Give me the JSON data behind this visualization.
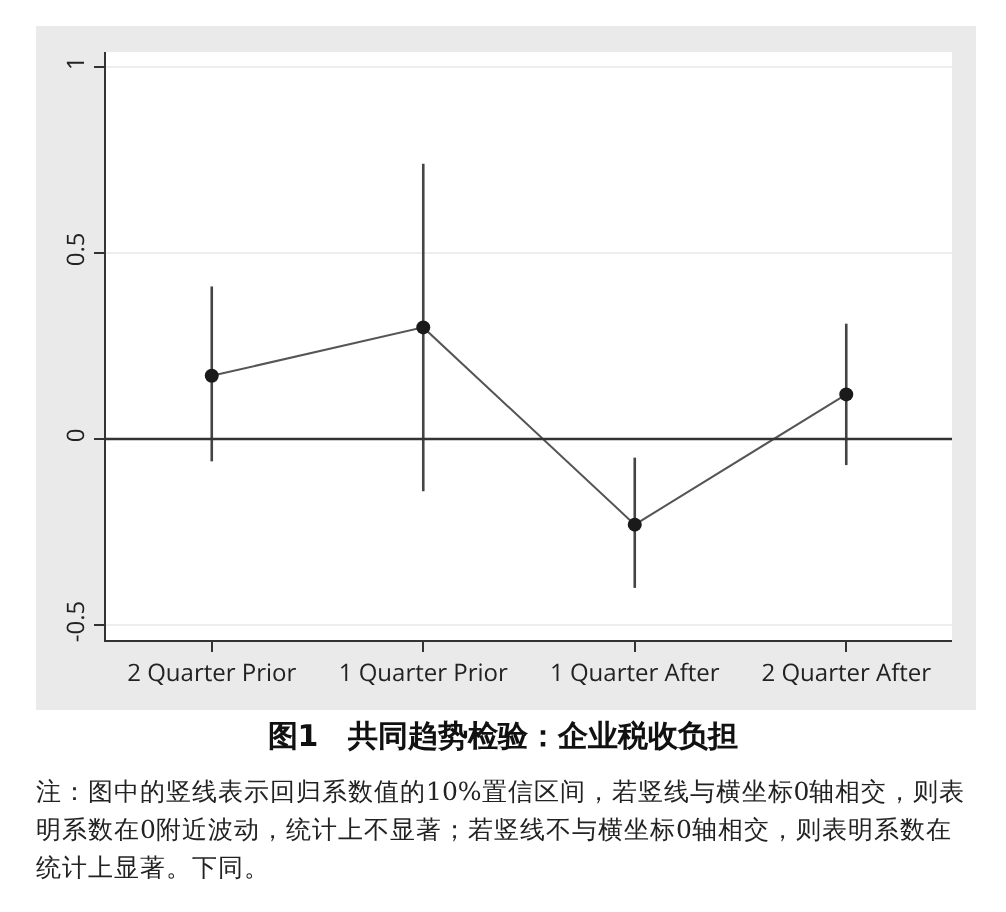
{
  "chart_data": {
    "type": "line",
    "title": "图1　共同趋势检验：企业税收负担",
    "categories": [
      "2 Quarter Prior",
      "1 Quarter Prior",
      "1 Quarter After",
      "2 Quarter After"
    ],
    "series": [
      {
        "color": "#555555",
        "values": [
          0.17,
          0.3,
          -0.23,
          0.12
        ],
        "errors": [
          [
            -0.06,
            0.41
          ],
          [
            -0.14,
            0.74
          ],
          [
            -0.4,
            -0.05
          ],
          [
            -0.07,
            0.31
          ]
        ]
      }
    ],
    "ylim": [
      -0.54,
      1.04
    ],
    "yticks": [
      -0.5,
      0,
      0.5,
      1
    ],
    "grid": "y",
    "marker": "circle",
    "line_style": "solid",
    "ref_lines": [
      {
        "axis": "y",
        "value": 0,
        "color": "#333333"
      }
    ],
    "annotations": [
      "注：图中的竖线表示回归系数值的10%置信区间，若竖线与横坐标0轴相交，则表明系数在0附近波动，统计上不显著；若竖线不与横坐标0轴相交，则表明系数在统计上显著。下同。"
    ]
  }
}
